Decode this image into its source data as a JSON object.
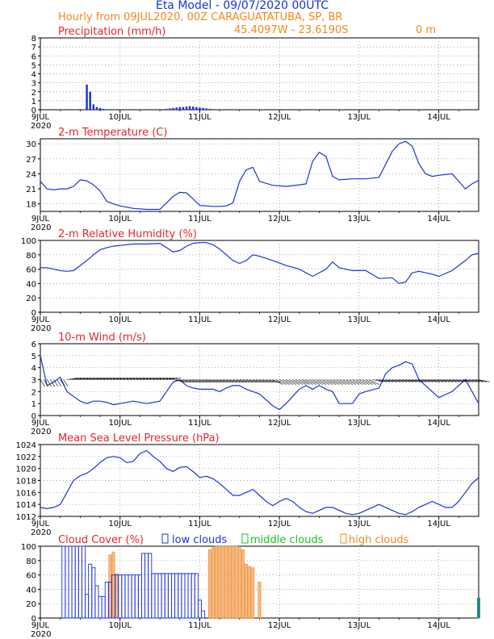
{
  "header": {
    "title": "Eta Model - 09/07/2020 00UTC",
    "subtitle": "Hourly from 09JUL2020, 00Z  CARAGUATATUBA, SP, BR",
    "coords": "45.4097W - 23.6190S",
    "elevation": "0   m"
  },
  "colors": {
    "title": "#1a34d6",
    "subtitle": "#f08a1a",
    "panel_title": "#e8242c",
    "series": "#1a34d6",
    "low_clouds": "#1a34d6",
    "middle_clouds": "#20c020",
    "high_clouds": "#f08a1a",
    "high_fill": "#f5b98a",
    "mid_fill": "#20c020"
  },
  "chart_data": [
    {
      "type": "bar",
      "title": "Precipitation (mm/h)",
      "ylim": [
        0,
        8
      ],
      "yticks": [
        0,
        1,
        2,
        3,
        4,
        5,
        6,
        7,
        8
      ],
      "x_start_day": 9,
      "x_day_labels": [
        "9JUL",
        "10JUL",
        "11JUL",
        "12JUL",
        "13JUL",
        "14JUL"
      ],
      "x_year_label": "2020",
      "x": [
        14,
        15,
        16,
        17,
        18,
        19,
        38,
        39,
        40,
        41,
        42,
        43,
        44,
        45,
        46,
        47,
        48,
        49,
        50,
        51
      ],
      "values": [
        2.8,
        2.0,
        0.6,
        0.3,
        0.2,
        0.1,
        0.1,
        0.15,
        0.2,
        0.25,
        0.3,
        0.3,
        0.35,
        0.4,
        0.35,
        0.3,
        0.25,
        0.2,
        0.15,
        0.1
      ]
    },
    {
      "type": "line",
      "title": "2-m Temperature (C)",
      "ylim": [
        16.5,
        31
      ],
      "yticks": [
        18,
        21,
        24,
        27,
        30
      ],
      "x_day_labels": [
        "9JUL",
        "10JUL",
        "11JUL",
        "12JUL",
        "13JUL",
        "14JUL"
      ],
      "x_year_label": "2020",
      "x": [
        0,
        2,
        4,
        6,
        8,
        10,
        12,
        14,
        16,
        18,
        20,
        22,
        24,
        28,
        32,
        36,
        40,
        42,
        44,
        46,
        48,
        50,
        52,
        54,
        56,
        58,
        60,
        62,
        64,
        66,
        70,
        74,
        78,
        80,
        82,
        84,
        86,
        88,
        90,
        94,
        98,
        102,
        106,
        108,
        110,
        112,
        114,
        116,
        118,
        120,
        124,
        128,
        130,
        132
      ],
      "values": [
        22.5,
        21.0,
        20.8,
        21.0,
        21.0,
        21.5,
        22.8,
        22.6,
        21.8,
        20.6,
        18.5,
        18.0,
        17.6,
        17.1,
        16.9,
        16.9,
        19.5,
        20.3,
        20.2,
        19.0,
        17.7,
        17.6,
        17.5,
        17.5,
        17.6,
        18.2,
        22.5,
        24.8,
        25.3,
        22.5,
        21.7,
        21.5,
        21.8,
        22.0,
        26.5,
        28.3,
        27.5,
        23.5,
        22.8,
        23.0,
        23.0,
        23.3,
        28.5,
        30.0,
        30.5,
        29.5,
        26.0,
        24.0,
        23.5,
        23.7,
        24.0,
        21.0,
        22.0,
        22.7
      ]
    },
    {
      "type": "line",
      "title": "2-m Relative Humidity (%)",
      "ylim": [
        0,
        100
      ],
      "yticks": [
        0,
        20,
        40,
        60,
        80,
        100
      ],
      "x_day_labels": [
        "9JUL",
        "10JUL",
        "11JUL",
        "12JUL",
        "13JUL",
        "14JUL"
      ],
      "x_year_label": "2020",
      "x": [
        0,
        2,
        4,
        6,
        8,
        10,
        12,
        14,
        16,
        18,
        20,
        22,
        24,
        28,
        32,
        36,
        38,
        40,
        42,
        44,
        46,
        48,
        50,
        52,
        54,
        56,
        58,
        60,
        62,
        64,
        66,
        70,
        74,
        78,
        80,
        82,
        84,
        86,
        88,
        90,
        94,
        98,
        102,
        106,
        108,
        110,
        112,
        114,
        116,
        118,
        120,
        124,
        128,
        130,
        132
      ],
      "values": [
        62,
        62,
        60,
        58,
        57,
        58,
        65,
        72,
        80,
        87,
        90,
        92,
        93,
        95,
        95,
        96,
        90,
        84,
        86,
        92,
        96,
        97,
        97,
        94,
        88,
        80,
        72,
        68,
        72,
        80,
        78,
        72,
        65,
        60,
        55,
        50,
        55,
        60,
        70,
        62,
        58,
        58,
        47,
        48,
        40,
        42,
        55,
        57,
        55,
        53,
        50,
        58,
        72,
        80,
        82
      ]
    },
    {
      "type": "line",
      "title": "10-m Wind (m/s)",
      "ylim": [
        0,
        6
      ],
      "yticks": [
        0,
        1,
        2,
        3,
        4,
        5,
        6
      ],
      "x_day_labels": [
        "9JUL",
        "10JUL",
        "11JUL",
        "12JUL",
        "13JUL",
        "14JUL"
      ],
      "x_year_label": "2020",
      "x": [
        0,
        2,
        4,
        6,
        8,
        10,
        12,
        14,
        16,
        18,
        20,
        22,
        24,
        28,
        32,
        36,
        40,
        42,
        44,
        46,
        48,
        50,
        52,
        54,
        56,
        58,
        60,
        62,
        64,
        66,
        70,
        72,
        74,
        78,
        80,
        82,
        84,
        86,
        88,
        90,
        94,
        96,
        98,
        102,
        104,
        106,
        108,
        110,
        112,
        114,
        116,
        118,
        120,
        124,
        128,
        130,
        132
      ],
      "values": [
        5.0,
        2.5,
        2.8,
        3.2,
        2.0,
        1.6,
        1.2,
        1.0,
        1.2,
        1.2,
        1.1,
        0.9,
        1.0,
        1.2,
        1.0,
        1.2,
        2.8,
        3.0,
        2.5,
        2.3,
        2.2,
        2.2,
        2.2,
        2.0,
        2.3,
        2.5,
        2.5,
        2.2,
        2.0,
        1.8,
        0.8,
        0.5,
        1.0,
        2.2,
        2.5,
        2.2,
        2.5,
        2.2,
        2.0,
        1.0,
        1.0,
        1.8,
        2.0,
        2.3,
        3.5,
        4.0,
        4.2,
        4.5,
        4.3,
        3.0,
        2.5,
        2.0,
        1.5,
        2.0,
        3.0,
        2.0,
        1.0
      ],
      "vectors": {
        "x_step": 1,
        "pattern": "wind arrows along 3 m/s baseline"
      }
    },
    {
      "type": "line",
      "title": "Mean Sea Level Pressure (hPa)",
      "ylim": [
        1012,
        1024
      ],
      "yticks": [
        1012,
        1014,
        1016,
        1018,
        1020,
        1022,
        1024
      ],
      "x_day_labels": [
        "9JUL",
        "10JUL",
        "11JUL",
        "12JUL",
        "13JUL",
        "14JUL"
      ],
      "x_year_label": "2020",
      "x": [
        0,
        2,
        4,
        6,
        8,
        10,
        12,
        14,
        16,
        18,
        20,
        22,
        24,
        26,
        28,
        30,
        32,
        34,
        36,
        38,
        40,
        42,
        44,
        46,
        48,
        50,
        52,
        54,
        56,
        58,
        60,
        62,
        64,
        66,
        68,
        70,
        72,
        74,
        76,
        78,
        80,
        82,
        84,
        86,
        88,
        90,
        92,
        94,
        96,
        98,
        100,
        102,
        104,
        106,
        108,
        110,
        112,
        114,
        116,
        118,
        120,
        122,
        124,
        126,
        128,
        130,
        132
      ],
      "values": [
        1013.5,
        1013.3,
        1013.5,
        1014,
        1016,
        1018,
        1018.8,
        1019.2,
        1020,
        1021,
        1021.8,
        1022,
        1021.8,
        1021,
        1021.2,
        1022.5,
        1023,
        1022,
        1021.2,
        1020,
        1019.5,
        1020.2,
        1020.3,
        1019.5,
        1018.5,
        1018.7,
        1018.3,
        1017.5,
        1016.5,
        1015.5,
        1015.5,
        1016,
        1016.5,
        1015.5,
        1014.5,
        1013.8,
        1014.5,
        1015,
        1014.5,
        1013.5,
        1012.8,
        1012.5,
        1013,
        1013.5,
        1013.5,
        1013,
        1012.5,
        1012.3,
        1012.5,
        1013,
        1013.5,
        1014,
        1013.5,
        1013,
        1012.5,
        1012.3,
        1012.8,
        1013.5,
        1014,
        1014.5,
        1014,
        1013.5,
        1013.5,
        1014.5,
        1016,
        1017.5,
        1018.5
      ]
    },
    {
      "type": "bar",
      "title": "Cloud Cover (%)",
      "legend": [
        "low clouds",
        "middle clouds",
        "high clouds"
      ],
      "ylim": [
        0,
        100
      ],
      "yticks": [
        0,
        20,
        40,
        60,
        80,
        100
      ],
      "x_day_labels": [
        "9JUL",
        "10JUL",
        "11JUL",
        "12JUL",
        "13JUL",
        "14JUL"
      ],
      "x_year_label": "2020",
      "low": {
        "x": [
          7,
          8,
          9,
          10,
          11,
          12,
          13,
          14,
          15,
          16,
          17,
          18,
          19,
          20,
          21,
          22,
          23,
          24,
          25,
          26,
          27,
          28,
          29,
          30,
          31,
          32,
          33,
          34,
          35,
          36,
          37,
          38,
          39,
          40,
          41,
          42,
          43,
          44,
          45,
          46,
          47,
          48,
          49
        ],
        "values": [
          100,
          100,
          100,
          100,
          100,
          100,
          100,
          33,
          75,
          70,
          45,
          30,
          30,
          50,
          50,
          60,
          60,
          60,
          60,
          60,
          60,
          60,
          60,
          60,
          90,
          90,
          90,
          62,
          62,
          62,
          62,
          62,
          62,
          62,
          62,
          62,
          62,
          62,
          62,
          62,
          62,
          25,
          10
        ]
      },
      "middle": {
        "x": [
          132
        ],
        "values": [
          28
        ]
      },
      "high": {
        "x": [
          21,
          22,
          23,
          51,
          52,
          53,
          54,
          55,
          56,
          57,
          58,
          59,
          60,
          61,
          62,
          63,
          64,
          66
        ],
        "values": [
          88,
          92,
          62,
          95,
          98,
          100,
          100,
          100,
          100,
          100,
          100,
          100,
          98,
          95,
          75,
          72,
          70,
          50
        ]
      }
    }
  ]
}
